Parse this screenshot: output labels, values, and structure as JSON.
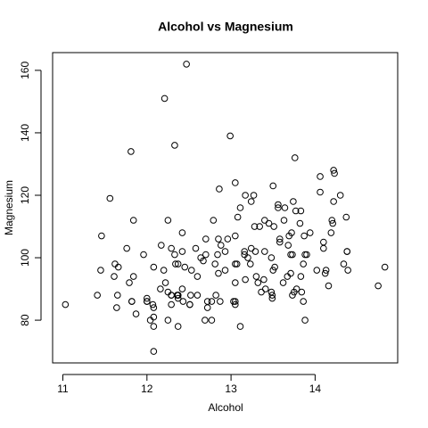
{
  "chart_data": {
    "type": "scatter",
    "title": "Alcohol vs Magnesium",
    "x_label": "Alcohol",
    "y_label": "Magnesium",
    "x": [
      14.23,
      13.2,
      13.16,
      14.37,
      13.24,
      14.2,
      14.39,
      14.06,
      14.83,
      13.86,
      14.1,
      14.12,
      13.75,
      14.75,
      14.38,
      13.63,
      14.3,
      13.83,
      14.19,
      13.64,
      14.06,
      12.93,
      13.71,
      12.85,
      13.5,
      13.05,
      13.39,
      13.3,
      13.87,
      14.02,
      13.73,
      13.58,
      13.68,
      13.76,
      13.51,
      13.48,
      13.28,
      13.05,
      13.07,
      14.22,
      13.56,
      13.41,
      13.88,
      13.24,
      13.05,
      14.21,
      14.38,
      13.9,
      14.1,
      13.94,
      13.05,
      13.83,
      13.82,
      13.77,
      13.74,
      13.56,
      14.22,
      13.29,
      13.72,
      12.37,
      12.33,
      12.64,
      13.67,
      12.37,
      12.17,
      12.37,
      13.11,
      12.37,
      13.34,
      12.21,
      12.29,
      13.86,
      13.49,
      12.99,
      11.96,
      11.66,
      13.03,
      11.84,
      12.33,
      12.7,
      12,
      12.72,
      12.08,
      13.05,
      11.84,
      12.67,
      12.16,
      11.65,
      11.64,
      12.08,
      12.08,
      12,
      12.69,
      12.29,
      11.62,
      12.47,
      11.81,
      12.29,
      12.37,
      12.29,
      12.08,
      12.6,
      12.34,
      11.82,
      12.51,
      12.42,
      12.25,
      12.72,
      12.22,
      11.61,
      11.46,
      12.52,
      11.76,
      11.41,
      12.08,
      11.03,
      11.82,
      12.42,
      12.77,
      12,
      11.45,
      11.56,
      12.42,
      13.05,
      11.87,
      12.07,
      12.43,
      11.79,
      12.37,
      12.04,
      12.86,
      12.88,
      12.81,
      12.7,
      12.51,
      12.6,
      12.25,
      12.53,
      13.49,
      12.84,
      12.93,
      13.36,
      13.52,
      13.62,
      12.25,
      13.16,
      13.88,
      12.87,
      13.32,
      13.08,
      13.5,
      12.79,
      13.11,
      13.23,
      12.58,
      13.17,
      13.84,
      12.45,
      14.34,
      13.48,
      12.36,
      13.69,
      12.85,
      12.96,
      13.78,
      13.73,
      13.45,
      12.82,
      13.58,
      13.4,
      12.2,
      12.77,
      14.16,
      13.71,
      13.4,
      13.27,
      13.17,
      14.13
    ],
    "values": [
      127,
      100,
      101,
      113,
      118,
      112,
      96,
      121,
      97,
      98,
      105,
      95,
      89,
      91,
      102,
      112,
      120,
      115,
      108,
      116,
      126,
      102,
      101,
      95,
      96,
      124,
      93,
      94,
      107,
      96,
      101,
      106,
      104,
      132,
      110,
      100,
      110,
      98,
      98,
      128,
      117,
      90,
      101,
      103,
      107,
      111,
      102,
      101,
      103,
      108,
      92,
      94,
      111,
      115,
      118,
      116,
      118,
      102,
      108,
      88,
      101,
      100,
      94,
      87,
      104,
      98,
      78,
      78,
      110,
      151,
      103,
      86,
      87,
      139,
      101,
      97,
      86,
      112,
      136,
      101,
      86,
      86,
      78,
      85,
      94,
      99,
      90,
      88,
      84,
      70,
      81,
      86,
      80,
      88,
      98,
      162,
      134,
      85,
      88,
      88,
      97,
      88,
      98,
      86,
      85,
      90,
      80,
      84,
      92,
      94,
      107,
      88,
      103,
      88,
      84,
      85,
      86,
      108,
      80,
      87,
      96,
      119,
      102,
      86,
      82,
      85,
      86,
      92,
      88,
      80,
      122,
      104,
      98,
      106,
      85,
      94,
      89,
      96,
      88,
      101,
      96,
      89,
      97,
      92,
      112,
      102,
      80,
      86,
      92,
      113,
      123,
      112,
      116,
      98,
      103,
      93,
      89,
      97,
      98,
      89,
      88,
      107,
      106,
      106,
      90,
      88,
      111,
      88,
      105,
      112,
      96,
      86,
      91,
      95,
      102,
      120,
      120,
      96
    ],
    "xlim": [
      10.878,
      14.982
    ],
    "ylim": [
      66.32,
      165.68
    ],
    "xticks": [
      11,
      12,
      13,
      14
    ],
    "yticks": [
      80,
      100,
      120,
      140,
      160
    ]
  }
}
